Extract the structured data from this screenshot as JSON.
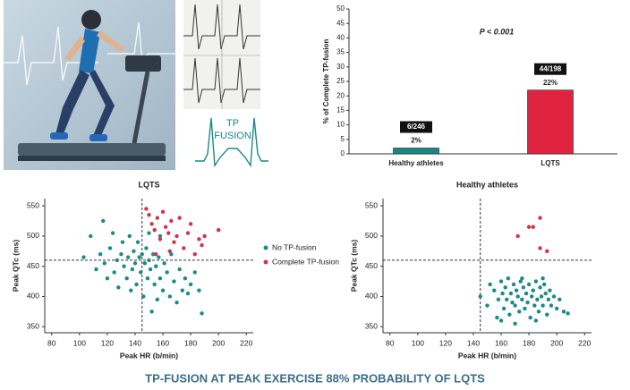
{
  "illustration": {
    "label_lines": [
      "TP",
      "FUSION"
    ]
  },
  "footer": "TP-FUSION AT PEAK EXERCISE 88% PROBABILITY OF LQTS",
  "chart_data": [
    {
      "type": "bar",
      "ylabel": "% of Complete TP-fusion",
      "annotation": "P < 0.001",
      "categories": [
        "Healthy athletes",
        "LQTS"
      ],
      "values": [
        2,
        22
      ],
      "value_labels": [
        "2%",
        "22%"
      ],
      "count_labels": [
        "6/246",
        "44/198"
      ],
      "colors": [
        "#1a8585",
        "#e0243f"
      ],
      "ylim": [
        0,
        50
      ],
      "yticks": [
        0,
        5,
        10,
        15,
        20,
        25,
        30,
        35,
        40,
        45,
        50
      ]
    },
    {
      "type": "scatter",
      "title": "LQTS",
      "xlabel": "Peak HR (b/min)",
      "ylabel": "Peak QTc (ms)",
      "xlim": [
        75,
        225
      ],
      "ylim": [
        340,
        562
      ],
      "xticks": [
        80,
        100,
        120,
        140,
        160,
        180,
        200,
        220
      ],
      "yticks": [
        350,
        400,
        450,
        500,
        550
      ],
      "reference_lines": {
        "x": 145,
        "y": 460
      },
      "legend": "right",
      "series": [
        {
          "name": "No TP-fusion",
          "color": "#1a8a8a",
          "x": [
            103,
            108,
            112,
            115,
            117,
            118,
            120,
            122,
            124,
            125,
            127,
            128,
            130,
            131,
            132,
            134,
            135,
            136,
            137,
            138,
            139,
            140,
            141,
            142,
            143,
            144,
            145,
            146,
            147,
            148,
            149,
            150,
            151,
            152,
            153,
            154,
            155,
            156,
            157,
            158,
            160,
            161,
            163,
            165,
            166,
            168,
            170,
            172,
            174,
            176,
            178,
            180,
            183,
            186,
            188,
            158,
            150
          ],
          "y": [
            465,
            500,
            445,
            470,
            525,
            455,
            430,
            480,
            505,
            440,
            460,
            415,
            470,
            490,
            450,
            430,
            465,
            500,
            410,
            445,
            475,
            455,
            420,
            490,
            465,
            440,
            470,
            400,
            455,
            480,
            430,
            460,
            445,
            375,
            470,
            420,
            450,
            395,
            465,
            430,
            410,
            455,
            440,
            400,
            470,
            425,
            390,
            445,
            410,
            430,
            405,
            420,
            440,
            410,
            372,
            500,
            505
          ]
        },
        {
          "name": "Complete TP-fusion",
          "color": "#d9304a",
          "x": [
            148,
            150,
            152,
            154,
            156,
            158,
            160,
            162,
            164,
            166,
            168,
            170,
            172,
            175,
            178,
            180,
            183,
            186,
            190,
            200,
            155,
            165,
            188
          ],
          "y": [
            545,
            535,
            520,
            510,
            530,
            495,
            540,
            515,
            505,
            525,
            490,
            500,
            530,
            480,
            505,
            520,
            470,
            495,
            500,
            510,
            470,
            475,
            485
          ]
        }
      ]
    },
    {
      "type": "scatter",
      "title": "Healthy athletes",
      "xlabel": "Peak HR (b/min)",
      "ylabel": "Peak QTc (ms)",
      "xlim": [
        75,
        225
      ],
      "ylim": [
        340,
        562
      ],
      "xticks": [
        80,
        100,
        120,
        140,
        160,
        180,
        200,
        220
      ],
      "yticks": [
        350,
        400,
        450,
        500,
        550
      ],
      "reference_lines": {
        "x": 145,
        "y": 460
      },
      "series": [
        {
          "color": "#1a8a8a",
          "x": [
            145,
            150,
            152,
            155,
            157,
            158,
            160,
            161,
            162,
            163,
            164,
            165,
            166,
            167,
            168,
            169,
            170,
            171,
            172,
            173,
            174,
            175,
            176,
            177,
            178,
            179,
            180,
            181,
            182,
            183,
            184,
            185,
            186,
            187,
            188,
            189,
            190,
            191,
            192,
            193,
            194,
            195,
            196,
            198,
            200,
            202,
            205,
            208,
            160,
            170,
            185,
            175,
            190
          ],
          "y": [
            400,
            385,
            420,
            410,
            365,
            395,
            425,
            405,
            380,
            415,
            395,
            430,
            370,
            405,
            390,
            420,
            385,
            410,
            400,
            375,
            425,
            395,
            415,
            380,
            405,
            390,
            420,
            365,
            400,
            410,
            385,
            425,
            395,
            375,
            415,
            400,
            385,
            420,
            405,
            370,
            395,
            410,
            385,
            400,
            380,
            395,
            375,
            372,
            360,
            355,
            360,
            430,
            430
          ]
        },
        {
          "color": "#d9304a",
          "x": [
            172,
            180,
            183,
            188,
            188,
            193
          ],
          "y": [
            500,
            515,
            515,
            530,
            480,
            475
          ]
        }
      ]
    }
  ]
}
